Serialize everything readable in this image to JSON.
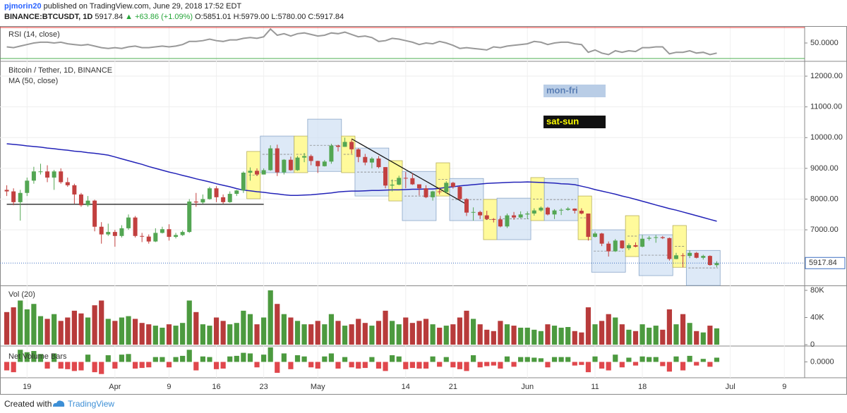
{
  "header": {
    "author": "pjmorin20",
    "published": " published on TradingView.com, June 29, 2018 17:52 EDT",
    "symbol": "BINANCE:BTCUSDT, 1D",
    "last": "5917.84",
    "change": "▲ +63.86 (+1.09%)",
    "open": "O:5851.01",
    "high": "H:5979.00",
    "low": "L:5780.00",
    "close": "C:5917.84"
  },
  "footer": {
    "created": "Created with",
    "brand": "TradingView"
  },
  "chart_data": {
    "type": "candlestick",
    "title": "Bitcoin / Tether, 1D, BINANCE",
    "up_color": "#53a653",
    "down_color": "#c2403f",
    "grid": true,
    "x": [
      "Mar 16",
      "Mar 17",
      "Mar 18",
      "Mar 19",
      "Mar 20",
      "Mar 21",
      "Mar 22",
      "Mar 23",
      "Mar 24",
      "Mar 25",
      "Mar 26",
      "Mar 27",
      "Mar 28",
      "Mar 29",
      "Mar 30",
      "Mar 31",
      "Apr 1",
      "Apr 2",
      "Apr 3",
      "Apr 4",
      "Apr 5",
      "Apr 6",
      "Apr 7",
      "Apr 8",
      "Apr 9",
      "Apr 10",
      "Apr 11",
      "Apr 12",
      "Apr 13",
      "Apr 14",
      "Apr 15",
      "Apr 16",
      "Apr 17",
      "Apr 18",
      "Apr 19",
      "Apr 20",
      "Apr 21",
      "Apr 22",
      "Apr 23",
      "Apr 24",
      "Apr 25",
      "Apr 26",
      "Apr 27",
      "Apr 28",
      "Apr 29",
      "Apr 30",
      "May 1",
      "May 2",
      "May 3",
      "May 4",
      "May 5",
      "May 6",
      "May 7",
      "May 8",
      "May 9",
      "May 10",
      "May 11",
      "May 12",
      "May 13",
      "May 14",
      "May 15",
      "May 16",
      "May 17",
      "May 18",
      "May 19",
      "May 20",
      "May 21",
      "May 22",
      "May 23",
      "May 24",
      "May 25",
      "May 26",
      "May 27",
      "May 28",
      "May 29",
      "May 30",
      "May 31",
      "Jun 1",
      "Jun 2",
      "Jun 3",
      "Jun 4",
      "Jun 5",
      "Jun 6",
      "Jun 7",
      "Jun 8",
      "Jun 9",
      "Jun 10",
      "Jun 11",
      "Jun 12",
      "Jun 13",
      "Jun 14",
      "Jun 15",
      "Jun 16",
      "Jun 17",
      "Jun 18",
      "Jun 19",
      "Jun 20",
      "Jun 21",
      "Jun 22",
      "Jun 23",
      "Jun 24",
      "Jun 25",
      "Jun 26",
      "Jun 27",
      "Jun 28",
      "Jun 29"
    ],
    "open": [
      8300,
      8250,
      7900,
      8200,
      8600,
      8900,
      8900,
      8700,
      8900,
      8550,
      8450,
      8150,
      7800,
      7950,
      7100,
      6850,
      6930,
      6800,
      7050,
      7400,
      6800,
      6780,
      6620,
      6900,
      7020,
      6770,
      6830,
      6930,
      7920,
      7890,
      8000,
      8350,
      8060,
      7900,
      8170,
      8280,
      8860,
      8920,
      8800,
      8940,
      9650,
      8870,
      9280,
      8940,
      9350,
      9400,
      9240,
      9070,
      9220,
      9740,
      9700,
      9860,
      9620,
      9370,
      9190,
      9320,
      9040,
      8440,
      8470,
      8690,
      8680,
      8480,
      8350,
      8060,
      8250,
      8230,
      8530,
      8400,
      8000,
      7560,
      7580,
      7470,
      7350,
      7340,
      7110,
      7470,
      7400,
      7500,
      7530,
      7630,
      7720,
      7500,
      7630,
      7650,
      7690,
      7620,
      7530,
      6770,
      6880,
      6550,
      6300,
      6650,
      6400,
      6500,
      6450,
      6710,
      6740,
      6760,
      6730,
      6050,
      6170,
      6150,
      6250,
      6090,
      6150,
      5851.01
    ],
    "high": [
      8450,
      8350,
      8300,
      8700,
      9050,
      9150,
      9100,
      8950,
      9000,
      8700,
      8500,
      8200,
      8100,
      7980,
      7250,
      7200,
      7000,
      7150,
      7500,
      7450,
      6900,
      6850,
      7050,
      7100,
      7180,
      6900,
      6980,
      8000,
      8200,
      8150,
      8400,
      8420,
      8150,
      8250,
      8300,
      8900,
      9030,
      9000,
      9000,
      9750,
      9770,
      9300,
      9380,
      9400,
      9500,
      9450,
      9250,
      9270,
      9800,
      9770,
      10000,
      9940,
      9650,
      9470,
      9370,
      9400,
      9040,
      8640,
      8760,
      8880,
      8840,
      8480,
      8450,
      8270,
      8380,
      8580,
      8560,
      8420,
      8030,
      7730,
      7620,
      7620,
      7380,
      7450,
      7530,
      7580,
      7600,
      7600,
      7700,
      7760,
      7750,
      7670,
      7700,
      7740,
      7700,
      7700,
      7530,
      6940,
      6900,
      6620,
      6700,
      6660,
      6560,
      6590,
      6830,
      6800,
      6830,
      6800,
      6750,
      6250,
      6240,
      6330,
      6280,
      6190,
      6170,
      5979
    ],
    "low": [
      8100,
      7800,
      7300,
      8100,
      8500,
      8800,
      8550,
      8300,
      8500,
      8400,
      7850,
      7750,
      7750,
      6950,
      6550,
      6800,
      6450,
      6750,
      7000,
      6750,
      6600,
      6550,
      6600,
      6880,
      6650,
      6720,
      6800,
      6900,
      7750,
      7850,
      7980,
      7900,
      7850,
      7880,
      8100,
      8200,
      8600,
      8750,
      8800,
      8920,
      8750,
      8800,
      8920,
      8920,
      9200,
      9100,
      8850,
      9060,
      9150,
      9550,
      9700,
      9480,
      9200,
      9100,
      9000,
      9000,
      8350,
      8250,
      8450,
      8350,
      8460,
      8120,
      8030,
      7950,
      8150,
      8180,
      8340,
      7960,
      7450,
      7300,
      7350,
      7320,
      7240,
      7080,
      7060,
      7330,
      7380,
      7350,
      7460,
      7590,
      7470,
      7350,
      7480,
      7620,
      7530,
      7500,
      6650,
      6750,
      6470,
      6130,
      6280,
      6380,
      6340,
      6430,
      6430,
      6650,
      6580,
      6700,
      6000,
      6040,
      5780,
      6080,
      6070,
      6030,
      5830,
      5780
    ],
    "close": [
      8250,
      7900,
      8200,
      8600,
      8900,
      8900,
      8700,
      8900,
      8550,
      8450,
      8150,
      7800,
      7950,
      7100,
      6850,
      6930,
      6800,
      7050,
      7400,
      6800,
      6780,
      6620,
      6900,
      7020,
      6770,
      6830,
      6930,
      7920,
      7890,
      8000,
      8350,
      8060,
      7900,
      8170,
      8280,
      8860,
      8920,
      8800,
      8940,
      9650,
      8870,
      9280,
      8940,
      9350,
      9400,
      9240,
      9070,
      9220,
      9740,
      9700,
      9860,
      9620,
      9370,
      9190,
      9320,
      9040,
      8440,
      8470,
      8690,
      8680,
      8480,
      8350,
      8060,
      8250,
      8230,
      8530,
      8400,
      8000,
      7560,
      7580,
      7470,
      7350,
      7340,
      7110,
      7470,
      7400,
      7500,
      7530,
      7630,
      7720,
      7500,
      7630,
      7650,
      7690,
      7620,
      7530,
      6770,
      6880,
      6550,
      6300,
      6650,
      6400,
      6500,
      6450,
      6710,
      6740,
      6760,
      6730,
      6050,
      6170,
      6150,
      6250,
      6090,
      6150,
      5854,
      5917.84
    ],
    "xlim": [
      "Mar 15",
      "Jul 12"
    ],
    "xticks": [
      {
        "value": "Mar 19",
        "label": "19"
      },
      {
        "value": "Apr 1",
        "label": "Apr"
      },
      {
        "value": "Apr 9",
        "label": "9"
      },
      {
        "value": "Apr 16",
        "label": "16"
      },
      {
        "value": "Apr 23",
        "label": "23"
      },
      {
        "value": "May 1",
        "label": "May"
      },
      {
        "value": "May 14",
        "label": "14"
      },
      {
        "value": "May 21",
        "label": "21"
      },
      {
        "value": "Jun 1",
        "label": "Jun"
      },
      {
        "value": "Jun 11",
        "label": "11"
      },
      {
        "value": "Jun 18",
        "label": "18"
      },
      {
        "value": "Jul 1",
        "label": "Jul"
      },
      {
        "value": "Jul 9",
        "label": "9"
      }
    ],
    "ylim": [
      5190,
      12460
    ],
    "yticks": [
      {
        "value": 7000,
        "label": "7000.00"
      },
      {
        "value": 8000,
        "label": "8000.00"
      },
      {
        "value": 9000,
        "label": "9000.00"
      },
      {
        "value": 10000,
        "label": "10000.00"
      },
      {
        "value": 11000,
        "label": "11000.00"
      },
      {
        "value": 12000,
        "label": "12000.00"
      }
    ],
    "last_price": 5917.84,
    "ma": {
      "name": "MA (50, close)",
      "color": "#2323b8",
      "values": [
        9800,
        9780,
        9760,
        9730,
        9710,
        9690,
        9660,
        9640,
        9610,
        9590,
        9560,
        9540,
        9510,
        9490,
        9460,
        9430,
        9370,
        9310,
        9250,
        9190,
        9130,
        9060,
        9000,
        8940,
        8880,
        8830,
        8770,
        8720,
        8660,
        8610,
        8560,
        8500,
        8450,
        8400,
        8340,
        8290,
        8270,
        8240,
        8220,
        8190,
        8170,
        8140,
        8120,
        8120,
        8130,
        8140,
        8160,
        8180,
        8200,
        8230,
        8250,
        8260,
        8260,
        8270,
        8280,
        8280,
        8290,
        8300,
        8300,
        8310,
        8320,
        8320,
        8330,
        8330,
        8350,
        8380,
        8400,
        8430,
        8450,
        8470,
        8490,
        8510,
        8520,
        8530,
        8540,
        8550,
        8550,
        8560,
        8550,
        8540,
        8530,
        8520,
        8500,
        8490,
        8470,
        8420,
        8370,
        8310,
        8260,
        8210,
        8160,
        8100,
        8050,
        7990,
        7930,
        7870,
        7810,
        7750,
        7690,
        7640,
        7580,
        7520,
        7460,
        7400,
        7340,
        7280
      ]
    },
    "rsi": {
      "name": "RSI (14, close)",
      "color": "#999999",
      "upper": 70,
      "upper_color": "#e53935",
      "lower": 30,
      "lower_color": "#4caf50",
      "ylim": [
        27.3,
        70.9
      ],
      "yticks": [
        {
          "value": 50,
          "label": "50.0000"
        }
      ],
      "values": [
        45,
        44,
        46,
        48,
        50,
        51,
        51,
        50,
        51,
        49,
        48,
        47,
        48,
        46,
        44,
        43,
        44,
        43,
        45,
        46,
        44,
        44,
        45,
        46,
        45,
        46,
        48,
        52,
        52,
        53,
        55,
        53,
        52,
        54,
        54,
        56,
        57,
        56,
        58,
        68,
        60,
        62,
        59,
        62,
        63,
        61,
        59,
        60,
        63,
        62,
        64,
        61,
        58,
        59,
        57,
        52,
        53,
        56,
        55,
        53,
        51,
        48,
        50,
        49,
        52,
        50,
        47,
        43,
        44,
        43,
        42,
        41,
        45,
        44,
        46,
        47,
        48,
        49,
        52,
        51,
        48,
        50,
        51,
        51,
        49,
        48,
        38,
        41,
        37,
        35,
        40,
        38,
        40,
        39,
        44,
        44,
        45,
        45,
        36,
        38,
        38,
        40,
        37,
        38,
        35,
        37
      ]
    },
    "volume": {
      "name": "Vol (20)",
      "up_color": "#4c9a3f",
      "down_color": "#b83b3b",
      "ylim": [
        -1,
        86.2
      ],
      "yticks": [
        0,
        {
          "value": 40,
          "label": "40K"
        },
        {
          "value": 80,
          "label": "80K"
        }
      ],
      "values": [
        48,
        55,
        65,
        52,
        60,
        42,
        38,
        45,
        35,
        40,
        50,
        46,
        40,
        58,
        65,
        38,
        35,
        40,
        42,
        38,
        32,
        30,
        28,
        25,
        30,
        28,
        32,
        65,
        48,
        30,
        28,
        40,
        35,
        30,
        32,
        50,
        45,
        30,
        40,
        80,
        60,
        45,
        40,
        35,
        30,
        30,
        35,
        30,
        45,
        35,
        28,
        30,
        38,
        32,
        28,
        35,
        50,
        35,
        30,
        40,
        32,
        35,
        38,
        30,
        25,
        28,
        30,
        40,
        50,
        38,
        30,
        22,
        20,
        35,
        30,
        28,
        25,
        25,
        22,
        20,
        30,
        28,
        25,
        26,
        20,
        18,
        55,
        30,
        35,
        45,
        40,
        30,
        22,
        20,
        30,
        25,
        28,
        22,
        52,
        30,
        45,
        32,
        20,
        18,
        28,
        24
      ]
    },
    "net_volume": {
      "name": "Net Volume Bars",
      "up_color": "#4c9a3f",
      "down_color": "#e0474c",
      "ylim": [
        -25,
        25
      ],
      "yticks": [
        {
          "value": 0,
          "label": "0.0000"
        }
      ],
      "values": [
        -14,
        -17,
        20,
        16,
        18,
        13,
        -11,
        14,
        -11,
        -12,
        -15,
        -14,
        12,
        -17,
        -20,
        11,
        -11,
        12,
        13,
        -11,
        -10,
        -9,
        8,
        8,
        -9,
        8,
        10,
        20,
        -14,
        9,
        8,
        -12,
        -11,
        9,
        10,
        15,
        14,
        -9,
        12,
        24,
        -18,
        14,
        -12,
        11,
        9,
        -9,
        -11,
        9,
        14,
        -11,
        8,
        -9,
        -11,
        -10,
        8,
        -11,
        -15,
        11,
        9,
        -12,
        -10,
        -11,
        -11,
        9,
        -8,
        8,
        -9,
        -12,
        -15,
        11,
        -9,
        -7,
        -6,
        -11,
        9,
        -8,
        8,
        8,
        7,
        6,
        -9,
        8,
        8,
        8,
        -6,
        -5,
        -17,
        9,
        -11,
        -14,
        12,
        -9,
        7,
        -6,
        9,
        8,
        8,
        -7,
        -16,
        9,
        -14,
        10,
        -6,
        5,
        -8,
        7
      ]
    },
    "legend": [
      {
        "name": "mon-fri",
        "fill": "#b9cde6",
        "text": "#5b7fb5"
      },
      {
        "name": "sat-sun",
        "fill": "#111111",
        "text": "#ffff00"
      }
    ],
    "boxes": [
      {
        "kind": "sat-sun",
        "start": "Apr 21",
        "end": "Apr 22",
        "high": 9550,
        "low": 8010
      },
      {
        "kind": "mon-fri",
        "start": "Apr 23",
        "end": "Apr 27",
        "high": 10050,
        "low": 8860
      },
      {
        "kind": "sat-sun",
        "start": "Apr 28",
        "end": "Apr 29",
        "high": 10050,
        "low": 8860
      },
      {
        "kind": "mon-fri",
        "start": "Apr 30",
        "end": "May 4",
        "high": 10600,
        "low": 8900
      },
      {
        "kind": "sat-sun",
        "start": "May 5",
        "end": "May 6",
        "high": 10050,
        "low": 8860
      },
      {
        "kind": "mon-fri",
        "start": "May 7",
        "end": "May 11",
        "high": 9660,
        "low": 8100
      },
      {
        "kind": "sat-sun",
        "start": "May 12",
        "end": "May 13",
        "high": 9250,
        "low": 7940
      },
      {
        "kind": "mon-fri",
        "start": "May 14",
        "end": "May 18",
        "high": 8900,
        "low": 7300
      },
      {
        "kind": "sat-sun",
        "start": "May 19",
        "end": "May 20",
        "high": 9180,
        "low": 8100
      },
      {
        "kind": "mon-fri",
        "start": "May 21",
        "end": "May 25",
        "high": 8670,
        "low": 7300
      },
      {
        "kind": "sat-sun",
        "start": "May 26",
        "end": "May 27",
        "high": 7990,
        "low": 6680
      },
      {
        "kind": "mon-fri",
        "start": "May 28",
        "end": "Jun 1",
        "high": 8030,
        "low": 6680
      },
      {
        "kind": "sat-sun",
        "start": "Jun 2",
        "end": "Jun 3",
        "high": 8700,
        "low": 7300
      },
      {
        "kind": "mon-fri",
        "start": "Jun 4",
        "end": "Jun 8",
        "high": 8670,
        "low": 7300
      },
      {
        "kind": "sat-sun",
        "start": "Jun 9",
        "end": "Jun 10",
        "high": 8100,
        "low": 6680
      },
      {
        "kind": "mon-fri",
        "start": "Jun 11",
        "end": "Jun 15",
        "high": 7000,
        "low": 5620
      },
      {
        "kind": "sat-sun",
        "start": "Jun 16",
        "end": "Jun 17",
        "high": 7460,
        "low": 6130
      },
      {
        "kind": "mon-fri",
        "start": "Jun 18",
        "end": "Jun 22",
        "high": 6840,
        "low": 5510
      },
      {
        "kind": "sat-sun",
        "start": "Jun 23",
        "end": "Jun 24",
        "high": 7140,
        "low": 5780
      },
      {
        "kind": "mon-fri",
        "start": "Jun 25",
        "end": "Jun 29",
        "high": 6330,
        "low": 5190
      }
    ],
    "lines": [
      {
        "start": "Mar 16",
        "end": "Apr 23",
        "from": 7830,
        "to": 7830
      },
      {
        "start": "May 6",
        "end": "May 23",
        "from": 9960,
        "to": 7830
      }
    ]
  }
}
